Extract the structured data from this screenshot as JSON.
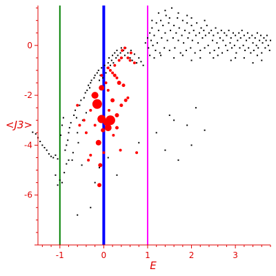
{
  "chart_data": {
    "type": "scatter",
    "title": "",
    "xlabel": "E",
    "ylabel": "<J3>",
    "xlim": [
      -1.5,
      3.8
    ],
    "ylim": [
      -8,
      1.6
    ],
    "grid": false,
    "axis_color": "#e00000",
    "x_ticks": [
      {
        "value": -1,
        "label": "-1"
      },
      {
        "value": 0,
        "label": "0"
      },
      {
        "value": 1,
        "label": "1"
      },
      {
        "value": 2,
        "label": "2"
      },
      {
        "value": 3,
        "label": "3"
      }
    ],
    "y_ticks": [
      {
        "value": 0,
        "label": "0"
      },
      {
        "value": -2,
        "label": "-2"
      },
      {
        "value": -4,
        "label": "-4"
      },
      {
        "value": -6,
        "label": "-6"
      }
    ],
    "vertical_lines": [
      {
        "x": -1,
        "color": "#008000",
        "width": 2
      },
      {
        "x": 0,
        "color": "#0000ff",
        "width": 4
      },
      {
        "x": 1,
        "color": "#ff00ff",
        "width": 2
      }
    ],
    "series": [
      {
        "color": "#000000",
        "points": [
          [
            -1.62,
            -3.48
          ],
          [
            -1.55,
            -3.55
          ],
          [
            -1.5,
            -3.7
          ],
          [
            -1.45,
            -3.85
          ],
          [
            -1.4,
            -4.0
          ],
          [
            -1.35,
            -4.1
          ],
          [
            -1.3,
            -4.2
          ],
          [
            -1.25,
            -4.35
          ],
          [
            -1.2,
            -4.45
          ],
          [
            -1.15,
            -4.5
          ],
          [
            -1.1,
            -4.4
          ],
          [
            -1.05,
            -4.55
          ],
          [
            -1.1,
            -5.2
          ],
          [
            -1.05,
            -5.6
          ],
          [
            -1.0,
            -5.4
          ],
          [
            -0.95,
            -5.5
          ],
          [
            -0.9,
            -5.1
          ],
          [
            -0.85,
            -4.75
          ],
          [
            -0.8,
            -4.6
          ],
          [
            -0.98,
            -3.6
          ],
          [
            -0.95,
            -3.2
          ],
          [
            -0.92,
            -2.9
          ],
          [
            -0.88,
            -4.2
          ],
          [
            -0.85,
            -4.0
          ],
          [
            -0.82,
            -3.8
          ],
          [
            -0.8,
            -3.5
          ],
          [
            -0.78,
            -3.3
          ],
          [
            -0.75,
            -3.1
          ],
          [
            -0.72,
            -4.6
          ],
          [
            -0.7,
            -4.3
          ],
          [
            -0.68,
            -2.8
          ],
          [
            -0.65,
            -2.6
          ],
          [
            -0.62,
            -2.9
          ],
          [
            -0.6,
            -3.5
          ],
          [
            -0.58,
            -3.9
          ],
          [
            -0.55,
            -2.4
          ],
          [
            -0.52,
            -2.2
          ],
          [
            -0.5,
            -4.8
          ],
          [
            -0.48,
            -3.0
          ],
          [
            -0.45,
            -2.1
          ],
          [
            -0.42,
            -1.9
          ],
          [
            -0.4,
            -2.7
          ],
          [
            -0.38,
            -1.8
          ],
          [
            -0.35,
            -1.6
          ],
          [
            -0.32,
            -1.7
          ],
          [
            -0.3,
            -1.5
          ],
          [
            -0.28,
            -1.4
          ],
          [
            -0.25,
            -2.0
          ],
          [
            -0.22,
            -1.3
          ],
          [
            -0.2,
            -1.2
          ],
          [
            -0.18,
            -2.5
          ],
          [
            -0.15,
            -1.1
          ],
          [
            -0.12,
            -1.0
          ],
          [
            -0.1,
            -1.4
          ],
          [
            -0.08,
            -1.2
          ],
          [
            -0.05,
            -0.9
          ],
          [
            -0.02,
            -1.3
          ],
          [
            0.02,
            -0.8
          ],
          [
            0.05,
            -1.1
          ],
          [
            0.08,
            -0.9
          ],
          [
            0.1,
            -0.7
          ],
          [
            0.12,
            -0.5
          ],
          [
            0.15,
            -0.8
          ],
          [
            0.18,
            -0.6
          ],
          [
            0.2,
            -0.4
          ],
          [
            0.22,
            -0.7
          ],
          [
            0.25,
            -0.3
          ],
          [
            0.28,
            -0.5
          ],
          [
            0.3,
            -0.2
          ],
          [
            0.32,
            -0.4
          ],
          [
            0.35,
            -0.6
          ],
          [
            0.38,
            -0.3
          ],
          [
            0.4,
            -0.1
          ],
          [
            0.42,
            -0.5
          ],
          [
            0.45,
            -0.2
          ],
          [
            0.48,
            -0.4
          ],
          [
            0.5,
            -0.1
          ],
          [
            0.55,
            -0.3
          ],
          [
            0.6,
            -0.5
          ],
          [
            0.62,
            -0.2
          ],
          [
            0.65,
            -0.6
          ],
          [
            0.7,
            -0.35
          ],
          [
            0.75,
            -0.7
          ],
          [
            0.8,
            -0.5
          ],
          [
            0.85,
            -0.65
          ],
          [
            0.9,
            -0.8
          ],
          [
            -0.6,
            -6.8
          ],
          [
            -0.3,
            -6.5
          ],
          [
            -0.2,
            -5.5
          ],
          [
            -0.1,
            -4.9
          ],
          [
            0.1,
            -4.5
          ],
          [
            0.3,
            -5.2
          ],
          [
            0.8,
            -3.9
          ],
          [
            1.2,
            -3.5
          ],
          [
            1.4,
            -4.2
          ],
          [
            1.6,
            -3.0
          ],
          [
            1.7,
            -4.6
          ],
          [
            1.9,
            -3.2
          ],
          [
            2.1,
            -2.5
          ],
          [
            2.3,
            -3.4
          ],
          [
            1.5,
            -2.8
          ],
          [
            2.0,
            -4.0
          ],
          [
            0.95,
            0.1
          ],
          [
            1.0,
            0.3
          ],
          [
            1.02,
            -0.1
          ],
          [
            1.05,
            0.5
          ],
          [
            1.08,
            0.2
          ],
          [
            1.1,
            0.7
          ],
          [
            1.12,
            0.0
          ],
          [
            1.15,
            0.4
          ],
          [
            1.18,
            -0.2
          ],
          [
            1.2,
            0.9
          ],
          [
            1.22,
            0.1
          ],
          [
            1.25,
            0.6
          ],
          [
            1.28,
            -0.3
          ],
          [
            1.3,
            1.0
          ],
          [
            1.32,
            0.3
          ],
          [
            1.35,
            0.8
          ],
          [
            1.38,
            -0.1
          ],
          [
            1.4,
            0.5
          ],
          [
            1.42,
            1.2
          ],
          [
            1.45,
            0.2
          ],
          [
            1.48,
            0.9
          ],
          [
            1.5,
            -0.2
          ],
          [
            1.52,
            0.6
          ],
          [
            1.55,
            1.5
          ],
          [
            1.58,
            0.3
          ],
          [
            1.6,
            0.8
          ],
          [
            1.62,
            -0.1
          ],
          [
            1.65,
            0.5
          ],
          [
            1.68,
            1.1
          ],
          [
            1.7,
            0.2
          ],
          [
            1.72,
            0.7
          ],
          [
            1.75,
            -0.3
          ],
          [
            1.78,
            0.4
          ],
          [
            1.8,
            1.0
          ],
          [
            1.82,
            0.1
          ],
          [
            1.85,
            0.6
          ],
          [
            1.88,
            -0.2
          ],
          [
            1.9,
            0.9
          ],
          [
            1.92,
            0.3
          ],
          [
            1.95,
            0.5
          ],
          [
            1.98,
            -0.1
          ],
          [
            2.0,
            0.8
          ],
          [
            2.02,
            0.2
          ],
          [
            2.05,
            0.6
          ],
          [
            2.08,
            -0.3
          ],
          [
            2.1,
            0.4
          ],
          [
            2.12,
            0.9
          ],
          [
            2.15,
            0.1
          ],
          [
            2.18,
            0.5
          ],
          [
            2.2,
            -0.2
          ],
          [
            2.22,
            0.7
          ],
          [
            2.25,
            0.3
          ],
          [
            2.28,
            0.6
          ],
          [
            2.3,
            -0.1
          ],
          [
            2.32,
            0.4
          ],
          [
            2.35,
            0.8
          ],
          [
            2.38,
            0.0
          ],
          [
            2.4,
            0.5
          ],
          [
            2.42,
            -0.3
          ],
          [
            2.45,
            0.6
          ],
          [
            2.48,
            0.2
          ],
          [
            2.5,
            0.4
          ],
          [
            2.52,
            -0.2
          ],
          [
            2.55,
            0.7
          ],
          [
            2.58,
            0.1
          ],
          [
            2.6,
            0.5
          ],
          [
            2.62,
            -0.1
          ],
          [
            2.65,
            0.3
          ],
          [
            2.68,
            0.6
          ],
          [
            2.7,
            -0.3
          ],
          [
            2.72,
            0.2
          ],
          [
            2.75,
            0.5
          ],
          [
            2.78,
            0.0
          ],
          [
            2.8,
            0.4
          ],
          [
            2.82,
            -0.2
          ],
          [
            2.85,
            0.6
          ],
          [
            2.88,
            0.1
          ],
          [
            2.9,
            0.3
          ],
          [
            2.92,
            -0.1
          ],
          [
            2.95,
            0.5
          ],
          [
            2.98,
            0.0
          ],
          [
            3.0,
            0.4
          ],
          [
            3.02,
            -0.3
          ],
          [
            3.05,
            0.2
          ],
          [
            3.08,
            0.5
          ],
          [
            3.1,
            -0.1
          ],
          [
            3.12,
            0.3
          ],
          [
            3.15,
            0.6
          ],
          [
            3.18,
            0.0
          ],
          [
            3.2,
            0.4
          ],
          [
            3.22,
            -0.2
          ],
          [
            3.25,
            0.2
          ],
          [
            3.28,
            0.5
          ],
          [
            3.3,
            -0.1
          ],
          [
            3.32,
            0.3
          ],
          [
            3.35,
            -0.3
          ],
          [
            3.38,
            0.4
          ],
          [
            3.4,
            0.1
          ],
          [
            3.42,
            -0.2
          ],
          [
            3.45,
            0.3
          ],
          [
            3.48,
            0.0
          ],
          [
            3.5,
            0.5
          ],
          [
            3.52,
            -0.1
          ],
          [
            3.55,
            0.2
          ],
          [
            3.58,
            0.4
          ],
          [
            3.6,
            -0.3
          ],
          [
            3.62,
            0.1
          ],
          [
            3.65,
            0.3
          ],
          [
            3.68,
            -0.1
          ],
          [
            3.7,
            0.2
          ],
          [
            3.72,
            0.4
          ],
          [
            3.75,
            0.0
          ],
          [
            3.78,
            -0.2
          ],
          [
            3.8,
            0.2
          ],
          [
            3.6,
            -0.6
          ],
          [
            3.0,
            -0.5
          ],
          [
            3.4,
            -0.7
          ],
          [
            2.0,
            -0.6
          ],
          [
            2.5,
            -0.5
          ],
          [
            1.05,
            -0.4
          ],
          [
            1.15,
            -0.5
          ],
          [
            1.3,
            -0.4
          ],
          [
            1.6,
            -0.5
          ],
          [
            1.8,
            -0.4
          ],
          [
            2.2,
            -0.5
          ],
          [
            2.6,
            -0.4
          ],
          [
            2.9,
            -0.6
          ],
          [
            3.2,
            -0.5
          ],
          [
            3.5,
            -0.4
          ],
          [
            1.1,
            1.0
          ],
          [
            1.25,
            1.3
          ],
          [
            1.5,
            1.1
          ],
          [
            1.7,
            1.3
          ],
          [
            2.0,
            1.1
          ],
          [
            2.3,
            1.0
          ],
          [
            1.4,
            1.4
          ],
          [
            1.9,
            1.2
          ]
        ]
      },
      {
        "color": "#ff0000",
        "points": [
          [
            -0.15,
            -2.35,
            7
          ],
          [
            0.15,
            -3.0,
            7
          ],
          [
            -0.05,
            -2.95,
            6
          ],
          [
            -0.2,
            -2.0,
            5
          ],
          [
            0.1,
            -3.3,
            5
          ],
          [
            -0.12,
            -3.9,
            4
          ],
          [
            -0.05,
            -1.7,
            4
          ],
          [
            -0.08,
            -4.8,
            3
          ],
          [
            -0.1,
            -5.6,
            3
          ],
          [
            0.05,
            -3.1,
            4
          ],
          [
            -0.02,
            -3.4,
            3
          ],
          [
            0.2,
            -2.2,
            3
          ],
          [
            0.3,
            -2.8,
            3
          ],
          [
            0.35,
            -1.5,
            3
          ],
          [
            0.25,
            -1.2,
            2.5
          ],
          [
            0.45,
            -1.6,
            2.5
          ],
          [
            0.5,
            -2.2,
            2.5
          ],
          [
            0.3,
            -3.3,
            2.5
          ],
          [
            0.4,
            -2.4,
            2.5
          ],
          [
            -0.3,
            -2.6,
            2
          ],
          [
            -0.25,
            -2.0,
            2
          ],
          [
            -0.4,
            -3.5,
            2
          ],
          [
            -0.55,
            -3.2,
            2
          ],
          [
            -0.2,
            -3.2,
            2
          ],
          [
            -0.3,
            -4.4,
            2
          ],
          [
            -0.35,
            -4.6,
            2
          ],
          [
            0.0,
            -4.3,
            2
          ],
          [
            0.22,
            -3.6,
            2
          ],
          [
            0.38,
            -4.2,
            2
          ],
          [
            0.1,
            -1.8,
            2
          ],
          [
            0.25,
            -0.8,
            2
          ],
          [
            0.35,
            -0.6,
            2
          ],
          [
            0.15,
            -1.0,
            2
          ],
          [
            0.42,
            -0.2,
            2
          ],
          [
            0.48,
            -0.1,
            2
          ],
          [
            0.55,
            -0.5,
            2
          ],
          [
            0.6,
            -0.6,
            2
          ],
          [
            0.62,
            -0.3,
            2
          ],
          [
            0.7,
            -0.7,
            2
          ],
          [
            0.4,
            -0.5,
            2
          ],
          [
            0.3,
            -1.3,
            2
          ],
          [
            0.05,
            -1.5,
            2
          ],
          [
            -0.05,
            -1.2,
            2
          ],
          [
            0.1,
            -0.9,
            2
          ],
          [
            0.2,
            -1.1,
            2
          ],
          [
            -0.6,
            -2.4,
            2
          ],
          [
            0.55,
            -2.1,
            2
          ],
          [
            0.75,
            -4.3,
            2
          ],
          [
            0.12,
            -2.6,
            2
          ],
          [
            -0.45,
            -3.0,
            2
          ]
        ]
      }
    ]
  }
}
